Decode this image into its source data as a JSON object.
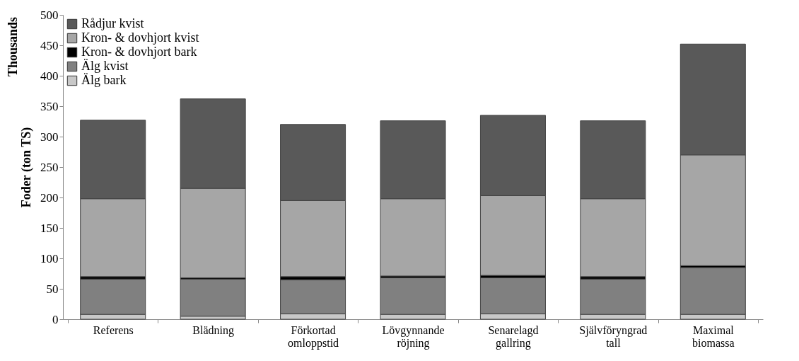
{
  "chart_data": {
    "type": "bar",
    "stacked": true,
    "ylabel": "Foder (ton TS)",
    "annotations": [
      "Thousands"
    ],
    "categories": [
      "Referens",
      "Blädning",
      "Förkortad omloppstid",
      "Lövgynnande röjning",
      "Senarelagd gallring",
      "Självföryngrad tall",
      "Maximal biomassa"
    ],
    "series": [
      {
        "name": "Älg bark",
        "color": "#c8c8c8",
        "values": [
          8,
          5,
          9,
          8,
          9,
          8,
          8
        ]
      },
      {
        "name": "Älg kvist",
        "color": "#808080",
        "values": [
          58,
          61,
          56,
          60,
          59,
          58,
          77
        ]
      },
      {
        "name": "Kron- & dovhjort bark",
        "color": "#000000",
        "values": [
          4,
          2,
          5,
          3,
          4,
          4,
          3
        ]
      },
      {
        "name": "Kron- & dovhjort kvist",
        "color": "#a6a6a6",
        "values": [
          128,
          147,
          125,
          127,
          131,
          128,
          182
        ]
      },
      {
        "name": "Rådjur kvist",
        "color": "#595959",
        "values": [
          129,
          147,
          125,
          128,
          132,
          128,
          182
        ]
      }
    ],
    "ylim": [
      0,
      500
    ],
    "yticks": [
      0,
      50,
      100,
      150,
      200,
      250,
      300,
      350,
      400,
      450,
      500
    ],
    "grid": false,
    "legend": "top left"
  }
}
